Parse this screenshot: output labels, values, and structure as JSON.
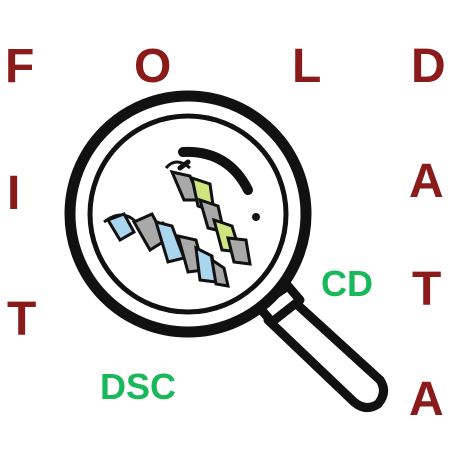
{
  "logo": {
    "letters": {
      "f": "F",
      "o": "O",
      "l": "L",
      "d1": "D",
      "i": "I",
      "t1": "T",
      "a1": "A",
      "t2": "T",
      "a2": "A"
    },
    "tags": {
      "cd": "CD",
      "dsc": "DSC"
    },
    "colors": {
      "letters": "#8b1a1a",
      "tags": "#19b85a",
      "outline": "#111111",
      "helix_blue": "#a9d6ee",
      "helix_green": "#cfe680",
      "helix_gray": "#a9a9a9"
    },
    "icon": "magnifying-glass-with-protein-helix-icon"
  }
}
